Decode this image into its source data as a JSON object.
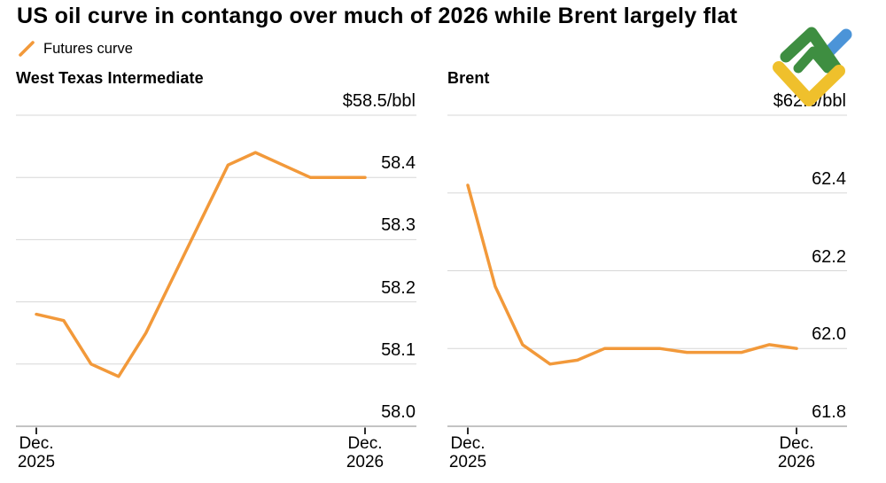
{
  "header": {
    "title": "US oil curve in contango over much of 2026 while Brent largely flat",
    "legend_label": "Futures curve",
    "logo_icon": "litefinance-logo"
  },
  "colors": {
    "line": "#F2993A",
    "grid": "#D7D7D7",
    "axis": "#C3C3C3",
    "tick": "#2B2B2B",
    "text": "#000000",
    "background": "#FFFFFF",
    "logo_green": "#3E8E41",
    "logo_blue": "#4B94D8",
    "logo_yellow": "#EFC02C"
  },
  "chart_data": [
    {
      "type": "line",
      "title": "West Texas Intermediate",
      "unit_label": "$58.5/bbl",
      "grid": true,
      "legend_position": "top-left",
      "series": [
        {
          "name": "Futures curve",
          "values": [
            58.18,
            58.17,
            58.1,
            58.08,
            58.15,
            58.24,
            58.33,
            58.42,
            58.44,
            58.42,
            58.4,
            58.4,
            58.4
          ]
        }
      ],
      "x_axis": {
        "ticks": [
          {
            "index": 0,
            "lines": [
              "Dec.",
              "2025"
            ]
          },
          {
            "index": 12,
            "lines": [
              "Dec.",
              "2026"
            ]
          }
        ]
      },
      "y_axis": {
        "lim": [
          58.0,
          58.5
        ],
        "ticks": [
          {
            "value": 58.5,
            "label": "$58.5/bbl"
          },
          {
            "value": 58.4,
            "label": "58.4"
          },
          {
            "value": 58.3,
            "label": "58.3"
          },
          {
            "value": 58.2,
            "label": "58.2"
          },
          {
            "value": 58.1,
            "label": "58.1"
          },
          {
            "value": 58.0,
            "label": "58.0"
          }
        ]
      }
    },
    {
      "type": "line",
      "title": "Brent",
      "unit_label": "$62.6/bbl",
      "grid": true,
      "legend_position": "top-left",
      "series": [
        {
          "name": "Futures curve",
          "values": [
            62.42,
            62.16,
            62.01,
            61.96,
            61.97,
            62.0,
            62.0,
            62.0,
            61.99,
            61.99,
            61.99,
            62.01,
            62.0
          ]
        }
      ],
      "x_axis": {
        "ticks": [
          {
            "index": 0,
            "lines": [
              "Dec.",
              "2025"
            ]
          },
          {
            "index": 12,
            "lines": [
              "Dec.",
              "2026"
            ]
          }
        ]
      },
      "y_axis": {
        "lim": [
          61.8,
          62.6
        ],
        "ticks": [
          {
            "value": 62.6,
            "label": "$62.6/bbl"
          },
          {
            "value": 62.4,
            "label": "62.4"
          },
          {
            "value": 62.2,
            "label": "62.2"
          },
          {
            "value": 62.0,
            "label": "62.0"
          },
          {
            "value": 61.8,
            "label": "61.8"
          }
        ]
      }
    }
  ]
}
